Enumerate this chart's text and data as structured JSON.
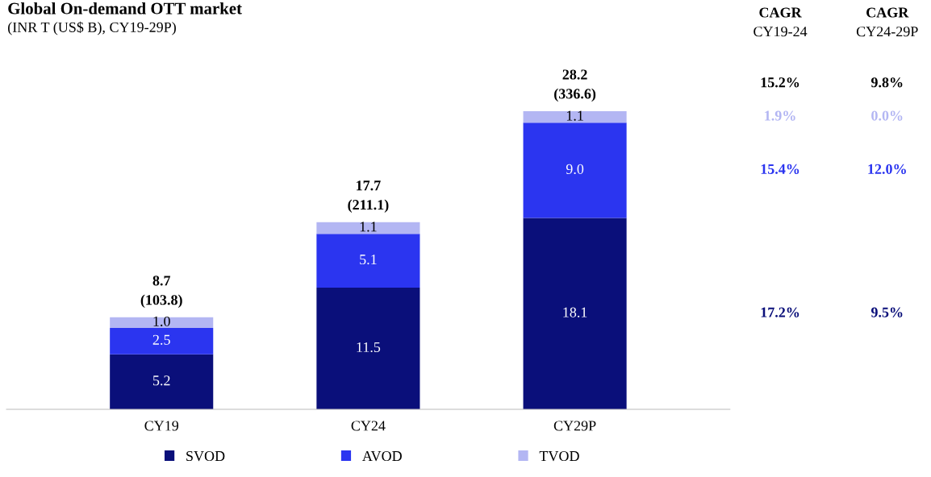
{
  "chart_data": {
    "type": "bar",
    "title": "Global On-demand OTT market",
    "subtitle": "(INR T (US$ B), CY19-29P)",
    "categories": [
      "CY19",
      "CY24",
      "CY29P"
    ],
    "series": [
      {
        "name": "SVOD",
        "color": "#0a0f7a",
        "values": [
          5.2,
          11.5,
          18.1
        ],
        "value_labels": [
          "5.2",
          "11.5",
          "18.1"
        ]
      },
      {
        "name": "AVOD",
        "color": "#2b35f0",
        "values": [
          2.5,
          5.1,
          9.0
        ],
        "value_labels": [
          "2.5",
          "5.1",
          "9.0"
        ]
      },
      {
        "name": "TVOD",
        "color": "#b3b6f3",
        "values": [
          1.0,
          1.1,
          1.1
        ],
        "value_labels": [
          "1.0",
          "1.1",
          "1.1"
        ]
      }
    ],
    "stacked": true,
    "totals": [
      "8.7\n(103.8)",
      "17.7\n(211.1)",
      "28.2\n(336.6)"
    ],
    "tick_labels": "x",
    "grid": false,
    "legend": "bottom",
    "annotations": [
      "CAGR",
      "CY19-24",
      "CAGR",
      "CY24-29P",
      "15.2%",
      "9.8%",
      "1.9%",
      "0.0%",
      "15.4%",
      "12.0%",
      "17.2%",
      "9.5%"
    ]
  }
}
